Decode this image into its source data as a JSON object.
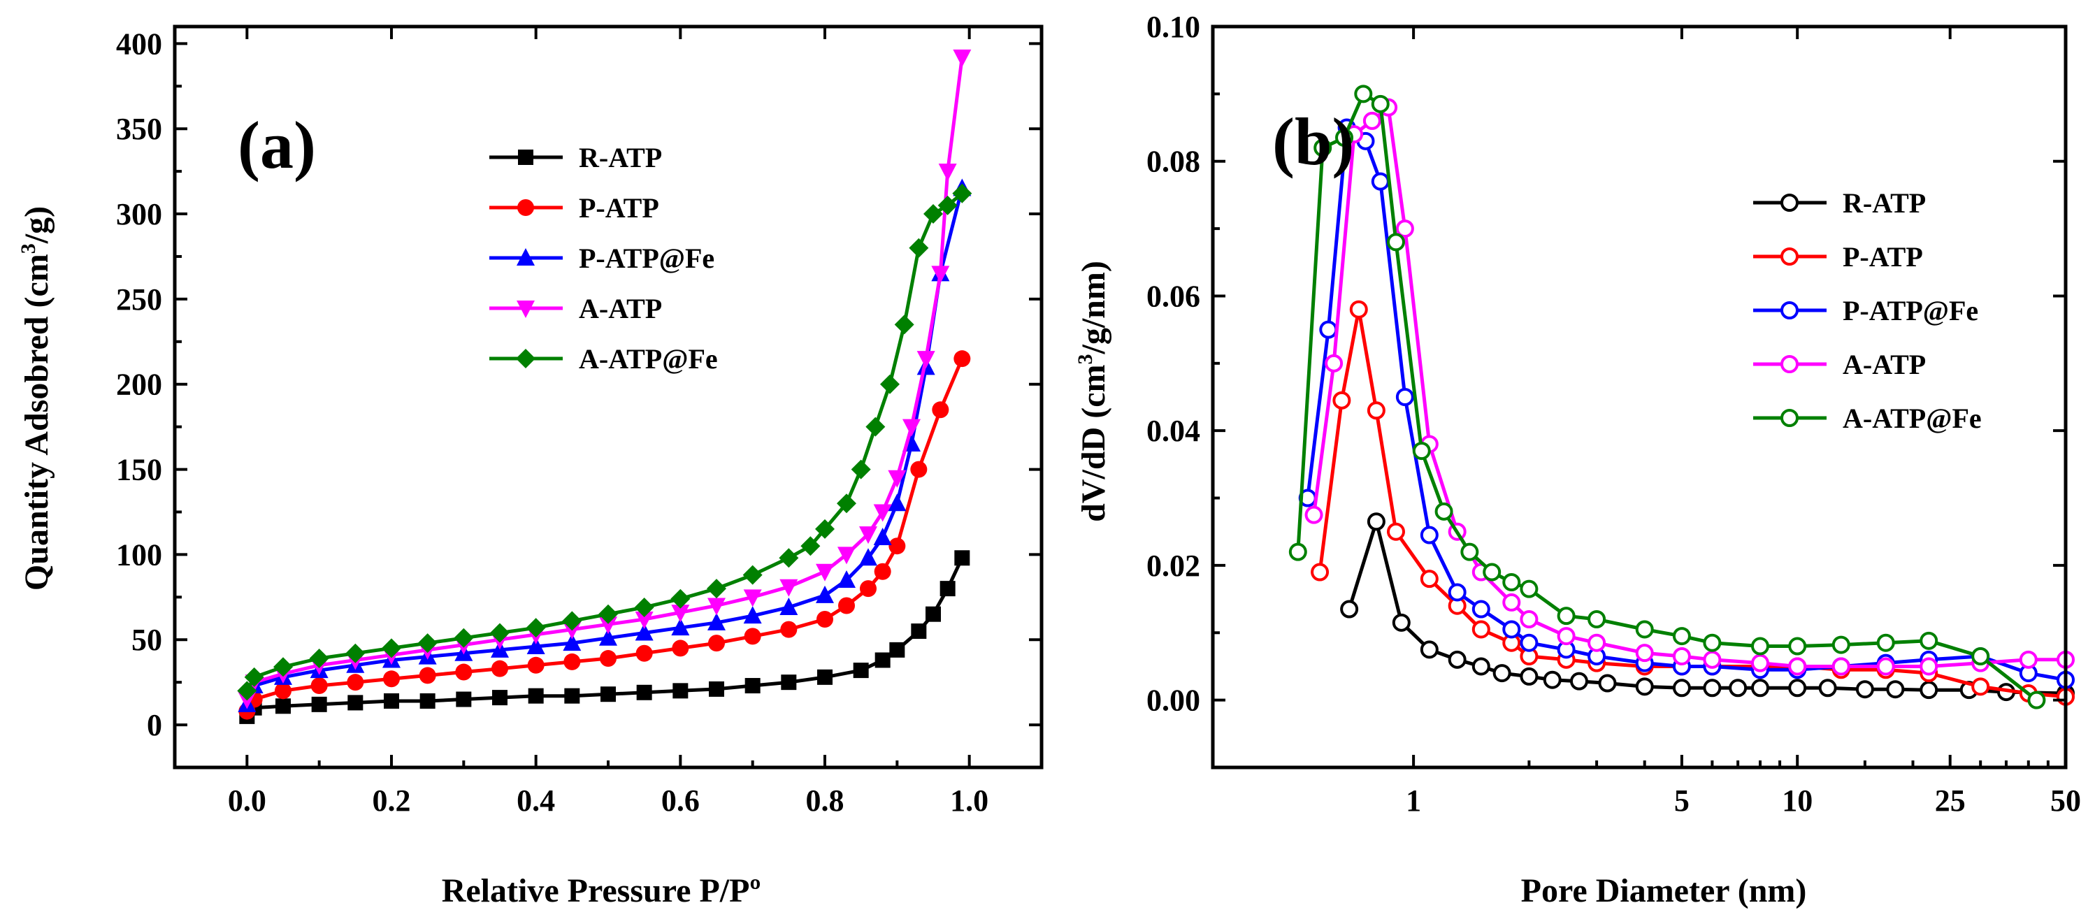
{
  "chart_data": [
    {
      "type": "line",
      "panel": "(a)",
      "xlabel": "Relative Pressure P/Pº",
      "ylabel": "Quantity Adsobred (cm³/g)",
      "ylabel_parts": {
        "main": "Quantity Adsobred (cm",
        "sup": "3",
        "end": "/g)"
      },
      "xlim": [
        -0.1,
        1.1
      ],
      "ylim": [
        -25,
        410
      ],
      "xticks": [
        0.0,
        0.2,
        0.4,
        0.6,
        0.8,
        1.0
      ],
      "xtick_labels": [
        "0.0",
        "0.2",
        "0.4",
        "0.6",
        "0.8",
        "1.0"
      ],
      "yticks": [
        0,
        50,
        100,
        150,
        200,
        250,
        300,
        350,
        400
      ],
      "ytick_labels": [
        "0",
        "50",
        "100",
        "150",
        "200",
        "250",
        "300",
        "350",
        "400"
      ],
      "legend_position": "top-center",
      "series": [
        {
          "name": "R-ATP",
          "color": "#000000",
          "marker": "square",
          "x": [
            0.0,
            0.01,
            0.05,
            0.1,
            0.15,
            0.2,
            0.25,
            0.3,
            0.35,
            0.4,
            0.45,
            0.5,
            0.55,
            0.6,
            0.65,
            0.7,
            0.75,
            0.8,
            0.85,
            0.88,
            0.9,
            0.93,
            0.95,
            0.97,
            0.99
          ],
          "y": [
            5,
            10,
            11,
            12,
            13,
            14,
            14,
            15,
            16,
            17,
            17,
            18,
            19,
            20,
            21,
            23,
            25,
            28,
            32,
            38,
            44,
            55,
            65,
            80,
            98
          ]
        },
        {
          "name": "P-ATP",
          "color": "#ff0000",
          "marker": "circle",
          "x": [
            0.0,
            0.01,
            0.05,
            0.1,
            0.15,
            0.2,
            0.25,
            0.3,
            0.35,
            0.4,
            0.45,
            0.5,
            0.55,
            0.6,
            0.65,
            0.7,
            0.75,
            0.8,
            0.83,
            0.86,
            0.88,
            0.9,
            0.93,
            0.96,
            0.99
          ],
          "y": [
            8,
            15,
            20,
            23,
            25,
            27,
            29,
            31,
            33,
            35,
            37,
            39,
            42,
            45,
            48,
            52,
            56,
            62,
            70,
            80,
            90,
            105,
            150,
            185,
            215
          ]
        },
        {
          "name": "P-ATP@Fe",
          "color": "#0000ff",
          "marker": "triangle-up",
          "x": [
            0.0,
            0.01,
            0.05,
            0.1,
            0.15,
            0.2,
            0.25,
            0.3,
            0.35,
            0.4,
            0.45,
            0.5,
            0.55,
            0.6,
            0.65,
            0.7,
            0.75,
            0.8,
            0.83,
            0.86,
            0.88,
            0.9,
            0.92,
            0.94,
            0.96,
            0.99
          ],
          "y": [
            12,
            23,
            28,
            32,
            35,
            38,
            40,
            42,
            44,
            46,
            48,
            51,
            54,
            57,
            60,
            64,
            69,
            76,
            85,
            98,
            110,
            130,
            165,
            210,
            265,
            315
          ]
        },
        {
          "name": "A-ATP",
          "color": "#ff00ff",
          "marker": "triangle-down",
          "x": [
            0.0,
            0.01,
            0.05,
            0.1,
            0.15,
            0.2,
            0.25,
            0.3,
            0.35,
            0.4,
            0.45,
            0.5,
            0.55,
            0.6,
            0.65,
            0.7,
            0.75,
            0.8,
            0.83,
            0.86,
            0.88,
            0.9,
            0.92,
            0.94,
            0.96,
            0.97,
            0.99
          ],
          "y": [
            15,
            25,
            30,
            35,
            38,
            41,
            44,
            47,
            50,
            53,
            56,
            59,
            62,
            66,
            70,
            75,
            81,
            90,
            100,
            112,
            125,
            145,
            175,
            215,
            265,
            325,
            392
          ]
        },
        {
          "name": "A-ATP@Fe",
          "color": "#008000",
          "marker": "diamond",
          "x": [
            0.0,
            0.01,
            0.05,
            0.1,
            0.15,
            0.2,
            0.25,
            0.3,
            0.35,
            0.4,
            0.45,
            0.5,
            0.55,
            0.6,
            0.65,
            0.7,
            0.75,
            0.78,
            0.8,
            0.83,
            0.85,
            0.87,
            0.89,
            0.91,
            0.93,
            0.95,
            0.97,
            0.99
          ],
          "y": [
            20,
            28,
            34,
            39,
            42,
            45,
            48,
            51,
            54,
            57,
            61,
            65,
            69,
            74,
            80,
            88,
            98,
            105,
            115,
            130,
            150,
            175,
            200,
            235,
            280,
            300,
            305,
            312
          ]
        }
      ]
    },
    {
      "type": "line",
      "panel": "(b)",
      "xlabel": "Pore Diameter  (nm)",
      "ylabel": "dV/dD (cm³/g/nm)",
      "ylabel_parts": {
        "main": "dV/dD (cm",
        "sup": "3",
        "end": "/g/nm)"
      },
      "xscale": "log",
      "xlim": [
        0.3,
        50
      ],
      "ylim": [
        -0.01,
        0.1
      ],
      "xticks": [
        1,
        5,
        10,
        25,
        50
      ],
      "xtick_labels": [
        "1",
        "5",
        "10",
        "25",
        "50"
      ],
      "yticks": [
        0.0,
        0.02,
        0.04,
        0.06,
        0.08,
        0.1
      ],
      "ytick_labels": [
        "0.00",
        "0.02",
        "0.04",
        "0.06",
        "0.08",
        "0.10"
      ],
      "legend_position": "top-right",
      "series": [
        {
          "name": "R-ATP",
          "color": "#000000",
          "marker": "open-circle",
          "x": [
            0.68,
            0.8,
            0.93,
            1.1,
            1.3,
            1.5,
            1.7,
            2.0,
            2.3,
            2.7,
            3.2,
            4,
            5,
            6,
            7,
            8,
            10,
            12,
            15,
            18,
            22,
            28,
            35,
            50
          ],
          "y": [
            0.0135,
            0.0265,
            0.0115,
            0.0075,
            0.006,
            0.005,
            0.004,
            0.0035,
            0.003,
            0.0028,
            0.0025,
            0.002,
            0.0018,
            0.0018,
            0.0018,
            0.0018,
            0.0018,
            0.0018,
            0.0016,
            0.0016,
            0.0015,
            0.0015,
            0.0012,
            0.001
          ]
        },
        {
          "name": "P-ATP",
          "color": "#ff0000",
          "marker": "open-circle",
          "x": [
            0.57,
            0.65,
            0.72,
            0.8,
            0.9,
            1.1,
            1.3,
            1.5,
            1.8,
            2.0,
            2.5,
            3,
            4,
            5,
            6,
            8,
            10,
            13,
            17,
            22,
            30,
            40,
            50
          ],
          "y": [
            0.019,
            0.0445,
            0.058,
            0.043,
            0.025,
            0.018,
            0.014,
            0.0105,
            0.0085,
            0.0065,
            0.006,
            0.0055,
            0.005,
            0.005,
            0.005,
            0.005,
            0.005,
            0.0045,
            0.0045,
            0.004,
            0.002,
            0.001,
            0.0005
          ]
        },
        {
          "name": "P-ATP@Fe",
          "color": "#0000ff",
          "marker": "open-circle",
          "x": [
            0.53,
            0.6,
            0.67,
            0.75,
            0.82,
            0.95,
            1.1,
            1.3,
            1.5,
            1.8,
            2.0,
            2.5,
            3,
            4,
            5,
            6,
            8,
            10,
            13,
            17,
            22,
            30,
            40,
            50
          ],
          "y": [
            0.03,
            0.055,
            0.085,
            0.083,
            0.077,
            0.045,
            0.0245,
            0.016,
            0.0135,
            0.0105,
            0.0085,
            0.0075,
            0.0065,
            0.0055,
            0.005,
            0.005,
            0.0045,
            0.0045,
            0.005,
            0.0055,
            0.006,
            0.0065,
            0.004,
            0.003
          ]
        },
        {
          "name": "A-ATP",
          "color": "#ff00ff",
          "marker": "open-circle",
          "x": [
            0.55,
            0.62,
            0.7,
            0.78,
            0.86,
            0.95,
            1.1,
            1.3,
            1.5,
            1.8,
            2.0,
            2.5,
            3,
            4,
            5,
            6,
            8,
            10,
            13,
            17,
            22,
            30,
            40,
            50
          ],
          "y": [
            0.0275,
            0.05,
            0.084,
            0.086,
            0.088,
            0.07,
            0.038,
            0.025,
            0.019,
            0.0145,
            0.012,
            0.0095,
            0.0085,
            0.007,
            0.0065,
            0.006,
            0.0055,
            0.005,
            0.005,
            0.005,
            0.005,
            0.0055,
            0.006,
            0.006
          ]
        },
        {
          "name": "A-ATP@Fe",
          "color": "#008000",
          "marker": "open-circle",
          "x": [
            0.5,
            0.58,
            0.66,
            0.74,
            0.82,
            0.9,
            1.05,
            1.2,
            1.4,
            1.6,
            1.8,
            2.0,
            2.5,
            3,
            4,
            5,
            6,
            8,
            10,
            13,
            17,
            22,
            30,
            42
          ],
          "y": [
            0.022,
            0.082,
            0.0835,
            0.09,
            0.0885,
            0.068,
            0.037,
            0.028,
            0.022,
            0.019,
            0.0175,
            0.0165,
            0.0125,
            0.012,
            0.0105,
            0.0095,
            0.0085,
            0.008,
            0.008,
            0.0082,
            0.0085,
            0.0088,
            0.0065,
            0.0
          ]
        }
      ]
    }
  ]
}
